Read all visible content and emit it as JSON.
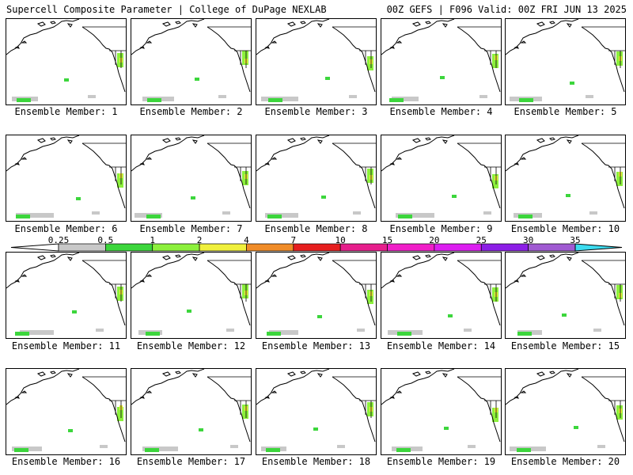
{
  "header": {
    "title_left": "Supercell Composite Parameter | College of DuPage NEXLAB",
    "title_right": "00Z GEFS | F096 Valid: 00Z FRI JUN 13 2025"
  },
  "members": [
    {
      "label": "Ensemble Member: 1"
    },
    {
      "label": "Ensemble Member: 2"
    },
    {
      "label": "Ensemble Member: 3"
    },
    {
      "label": "Ensemble Member: 4"
    },
    {
      "label": "Ensemble Member: 5"
    },
    {
      "label": "Ensemble Member: 6"
    },
    {
      "label": "Ensemble Member: 7"
    },
    {
      "label": "Ensemble Member: 8"
    },
    {
      "label": "Ensemble Member: 9"
    },
    {
      "label": "Ensemble Member: 10"
    },
    {
      "label": "Ensemble Member: 11"
    },
    {
      "label": "Ensemble Member: 12"
    },
    {
      "label": "Ensemble Member: 13"
    },
    {
      "label": "Ensemble Member: 14"
    },
    {
      "label": "Ensemble Member: 15"
    },
    {
      "label": "Ensemble Member: 16"
    },
    {
      "label": "Ensemble Member: 17"
    },
    {
      "label": "Ensemble Member: 18"
    },
    {
      "label": "Ensemble Member: 19"
    },
    {
      "label": "Ensemble Member: 20"
    }
  ],
  "colorbar": {
    "ticks": [
      "0.25",
      "0.5",
      "1",
      "2",
      "4",
      "7",
      "10",
      "15",
      "20",
      "25",
      "30",
      "35"
    ],
    "colors": [
      "#c8c8c8",
      "#3cd63c",
      "#8cf03c",
      "#f0f03c",
      "#f08c28",
      "#e61e1e",
      "#e61e8c",
      "#f01ec8",
      "#dc1ef0",
      "#8c1ee6",
      "#a05ad2",
      "#3cdcf0"
    ]
  }
}
